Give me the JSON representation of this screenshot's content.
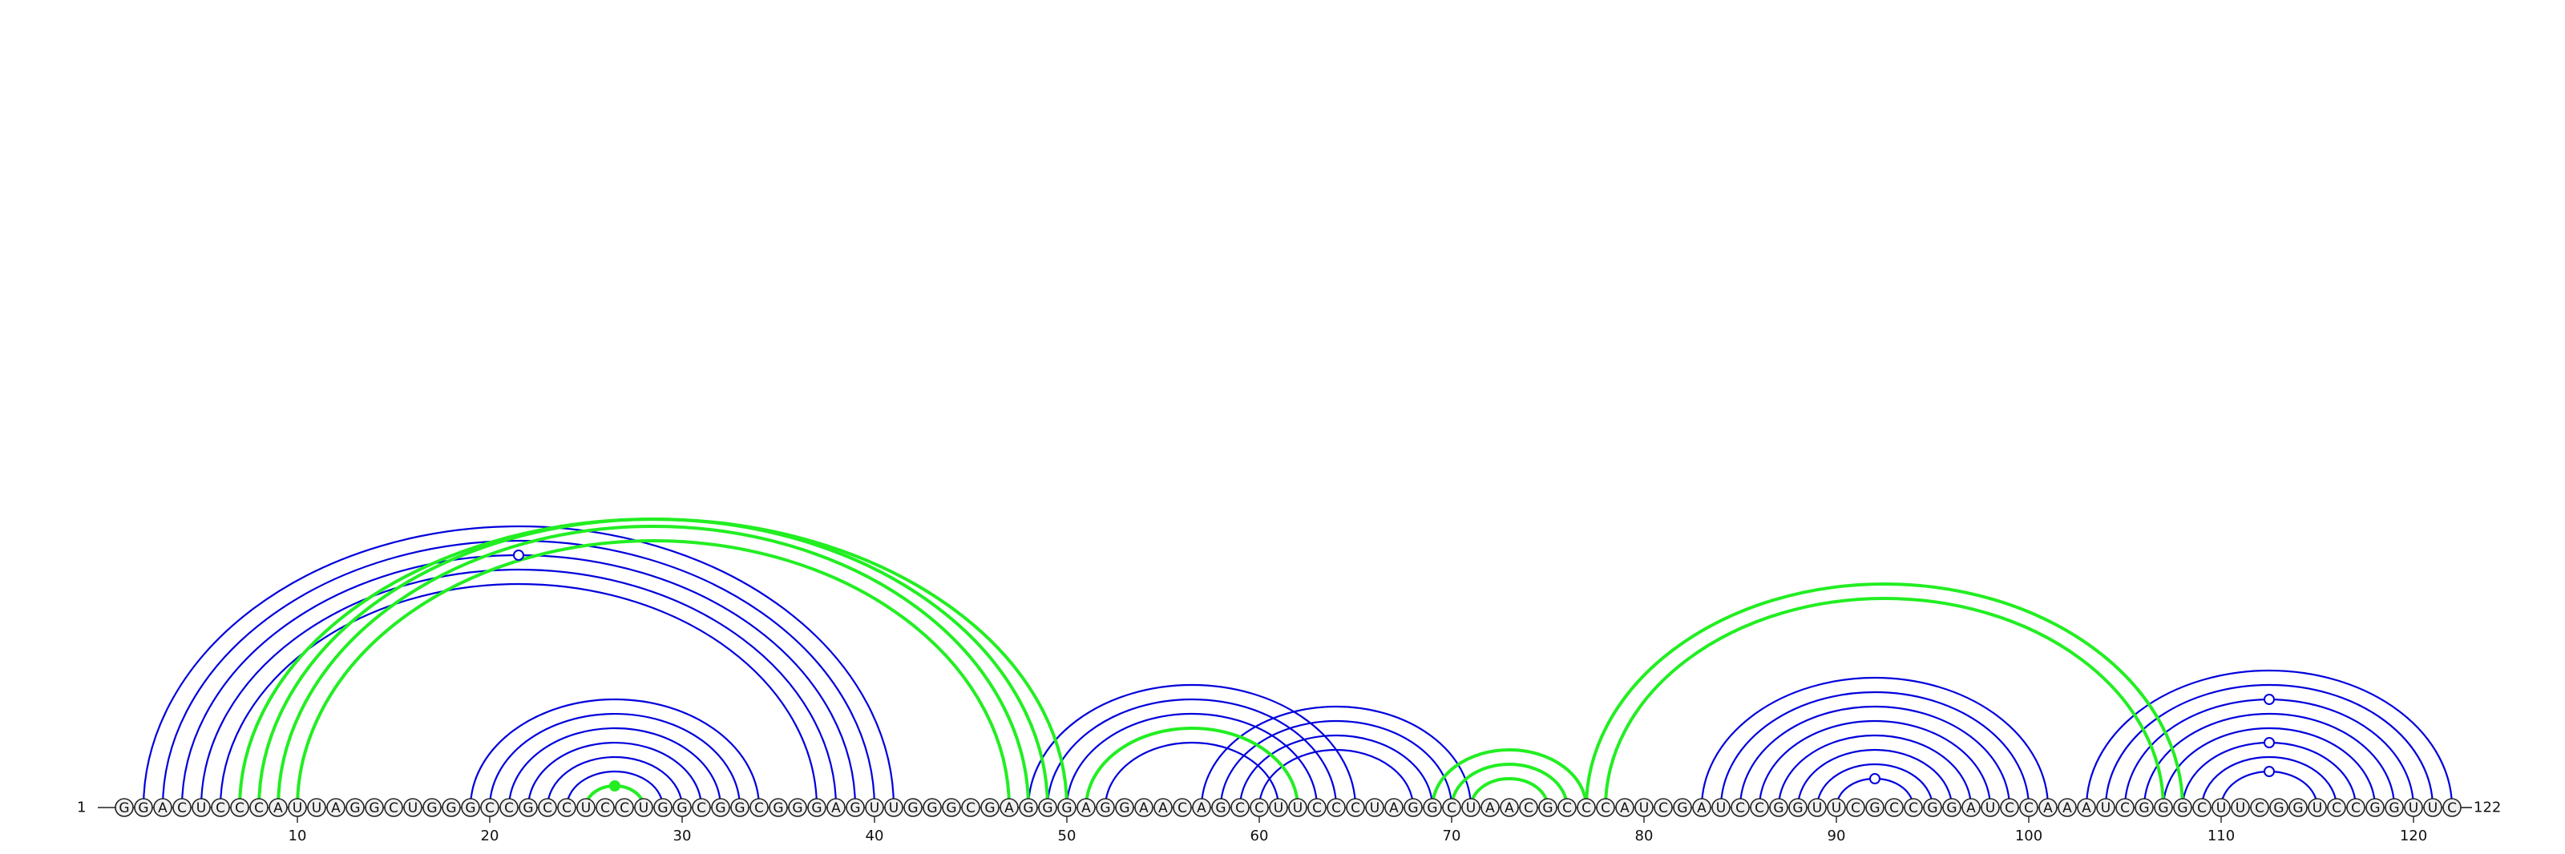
{
  "sequence": "GGACUCCCAUUAGGCUGGGCCGCCUCCUGGCGGCGGGAGUUGGGCGAGGGAGGAACAGCCUUCCCUAGGCUAACGCCCAUCGAUCCGGUUCGCCGGAUCCAAAUCGGGCUUCGGUCCGGUUC",
  "start_label": "1",
  "end_label": "122",
  "ticks": [
    10,
    20,
    30,
    40,
    50,
    60,
    70,
    80,
    90,
    100,
    110,
    120
  ],
  "colors": {
    "blue": "#0000dd",
    "green": "#22ee22",
    "outline": "#222222"
  },
  "chart_data": {
    "type": "arc",
    "length": 122,
    "blue_pairs": [
      [
        2,
        41
      ],
      [
        3,
        40
      ],
      [
        4,
        39
      ],
      [
        5,
        38
      ],
      [
        6,
        37
      ],
      [
        19,
        34
      ],
      [
        20,
        33
      ],
      [
        21,
        32
      ],
      [
        22,
        31
      ],
      [
        23,
        30
      ],
      [
        24,
        29
      ],
      [
        25,
        28
      ],
      [
        48,
        65
      ],
      [
        49,
        64
      ],
      [
        50,
        63
      ],
      [
        51,
        62
      ],
      [
        52,
        61
      ],
      [
        57,
        71
      ],
      [
        58,
        70
      ],
      [
        59,
        69
      ],
      [
        60,
        68
      ],
      [
        83,
        101
      ],
      [
        84,
        100
      ],
      [
        85,
        99
      ],
      [
        86,
        98
      ],
      [
        87,
        97
      ],
      [
        88,
        96
      ],
      [
        89,
        95
      ],
      [
        90,
        94
      ],
      [
        103,
        122
      ],
      [
        104,
        121
      ],
      [
        105,
        120
      ],
      [
        106,
        119
      ],
      [
        107,
        118
      ],
      [
        108,
        117
      ],
      [
        109,
        116
      ],
      [
        110,
        115
      ]
    ],
    "green_pairs": [
      [
        7,
        50
      ],
      [
        8,
        49
      ],
      [
        9,
        48
      ],
      [
        10,
        47
      ],
      [
        51,
        62
      ],
      [
        25,
        28
      ],
      [
        69,
        77
      ],
      [
        70,
        76
      ],
      [
        71,
        75
      ],
      [
        77,
        108
      ],
      [
        78,
        107
      ]
    ],
    "open_circle_markers": [
      {
        "color": "blue",
        "pair": [
          4,
          39
        ]
      },
      {
        "color": "blue",
        "pair": [
          90,
          94
        ]
      },
      {
        "color": "blue",
        "pair": [
          105,
          120
        ]
      },
      {
        "color": "blue",
        "pair": [
          108,
          117
        ]
      },
      {
        "color": "blue",
        "pair": [
          110,
          115
        ]
      }
    ],
    "filled_circle_markers": [
      {
        "color": "green",
        "pair": [
          25,
          28
        ]
      }
    ]
  }
}
